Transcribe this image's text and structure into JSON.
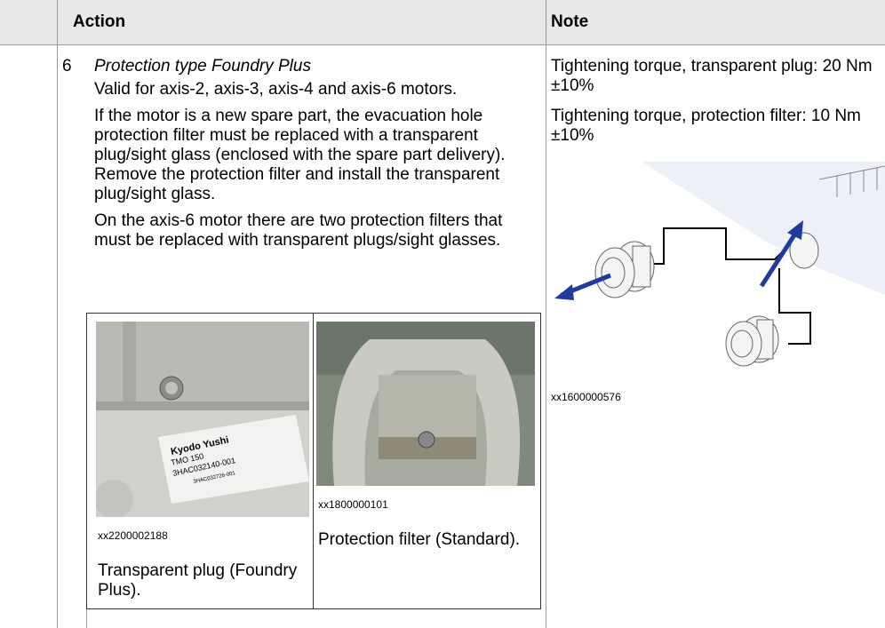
{
  "table": {
    "header": [
      "Action",
      "Note"
    ],
    "step": "6",
    "action": {
      "title": "Protection type Foundry Plus",
      "paragraphs": [
        "Valid for axis-2, axis-3, axis-4 and axis-6 motors.",
        "If the motor is a new spare part, the evacuation hole protection filter must be replaced with a transparent plug/sight glass (enclosed with the spare part delivery). Remove the protection filter and install the transparent plug/sight glass.",
        "On the axis-6 motor there are two protection filters that must be replaced with transparent plugs/sight glasses."
      ],
      "figures": [
        {
          "id": "xx2200002188",
          "caption": "Transparent plug (Foundry Plus).",
          "label_lines": [
            "Kyodo Yushi",
            "TMO 150",
            "3HAC032140-001",
            "3HAC032726-001"
          ]
        },
        {
          "id": "xx1800000101",
          "caption": "Protection filter (Standard)."
        }
      ]
    },
    "note": {
      "paragraphs": [
        "Tightening torque, transparent plug: 20 Nm ±10%",
        "Tightening torque, protection filter: 10 Nm ±10%"
      ],
      "figure_id": "xx1600000576"
    }
  }
}
